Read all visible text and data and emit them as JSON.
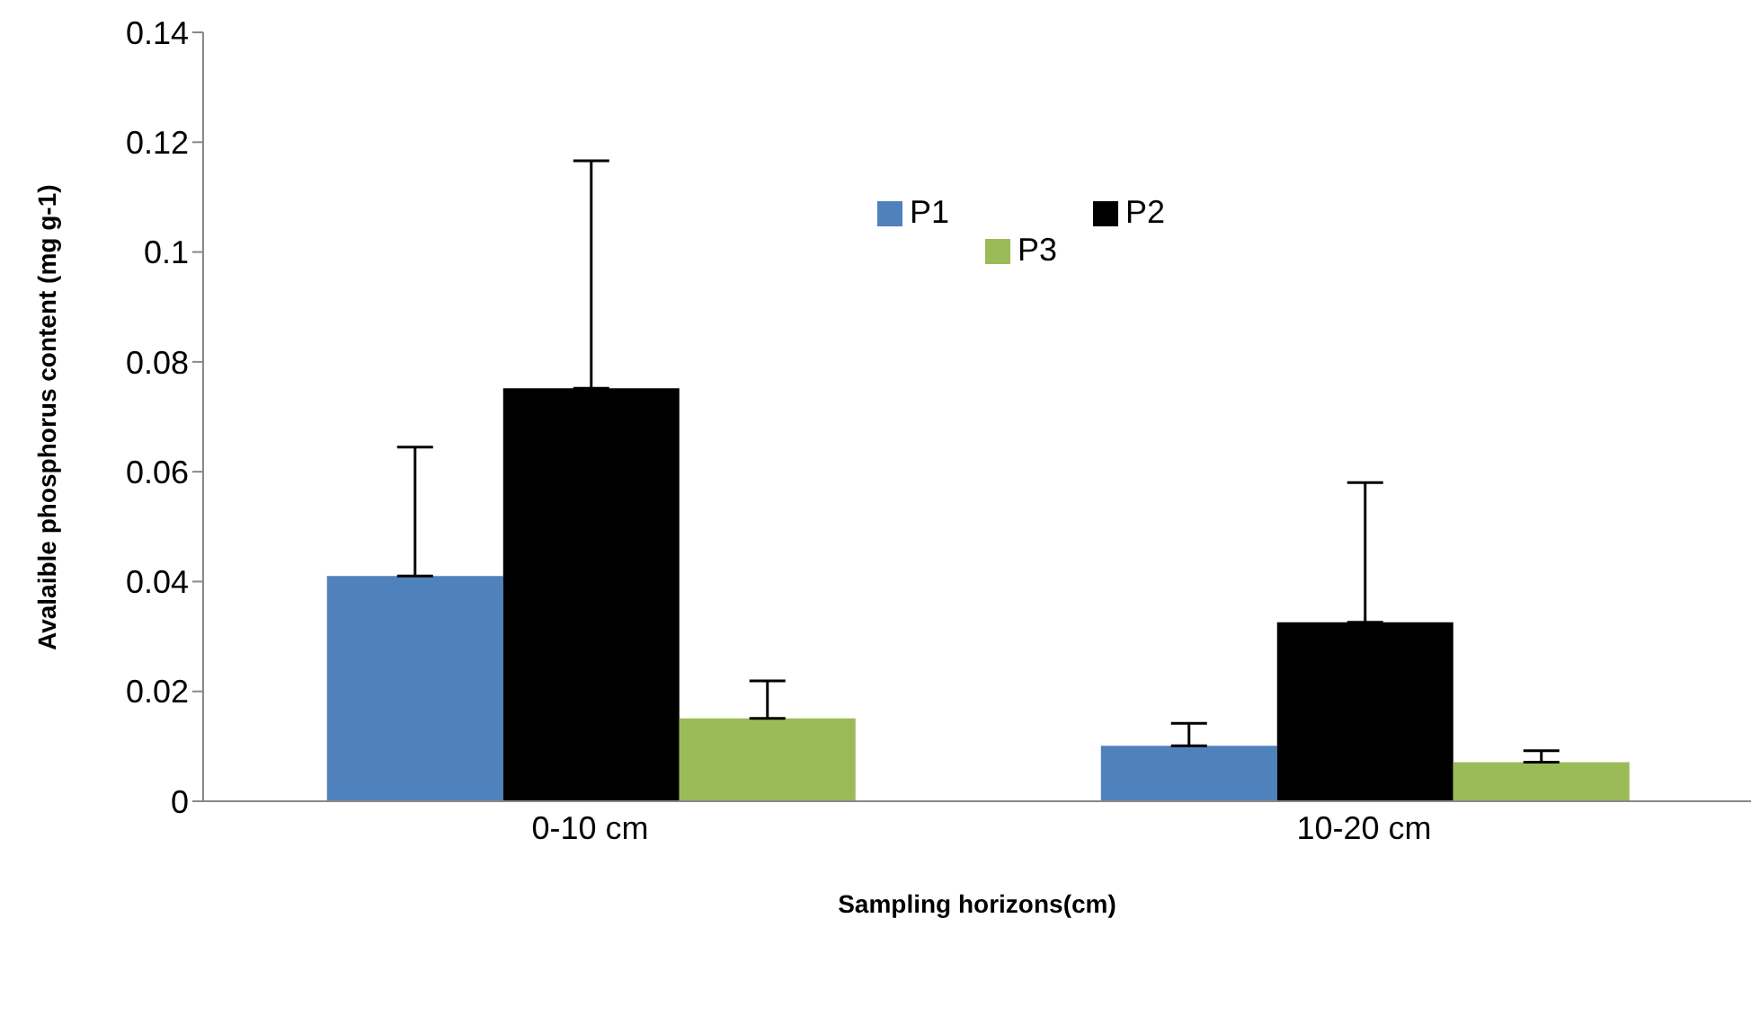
{
  "chart_data": {
    "type": "bar",
    "xlabel": "Sampling horizons(cm)",
    "ylabel": "Avalaible phosphorus content (mg g-1)",
    "categories": [
      "0-10 cm",
      "10-20 cm"
    ],
    "series": [
      {
        "name": "P1",
        "color": "#4f81bd",
        "values": [
          0.041,
          0.0101
        ],
        "errors": [
          [
            0.041,
            0.0645
          ],
          [
            0.0101,
            0.0142
          ]
        ]
      },
      {
        "name": "P2",
        "color": "#000000",
        "values": [
          0.0752,
          0.0326
        ],
        "errors": [
          [
            0.0752,
            0.1166
          ],
          [
            0.0326,
            0.058
          ]
        ]
      },
      {
        "name": "P3",
        "color": "#9bbb59",
        "values": [
          0.0151,
          0.0071
        ],
        "errors": [
          [
            0.0151,
            0.0219
          ],
          [
            0.0071,
            0.0092
          ]
        ]
      }
    ],
    "ylim": [
      0,
      0.14
    ],
    "yticks": [
      0,
      0.02,
      0.04,
      0.06,
      0.08,
      0.1,
      0.12,
      0.14
    ],
    "grid": false,
    "legend": "top right"
  }
}
